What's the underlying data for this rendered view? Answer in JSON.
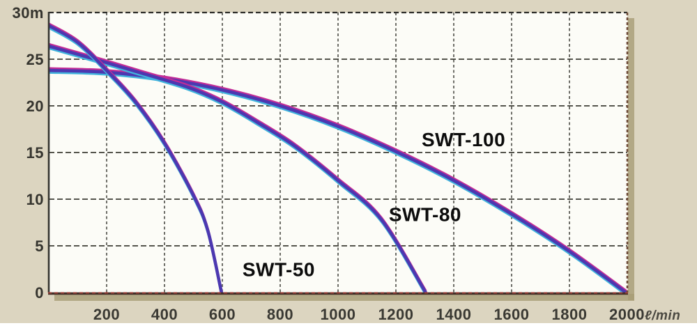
{
  "page": {
    "background_color": "#dcd5c0",
    "plot_background_color": "#fcfcf7",
    "shadow_color": "#a89c75"
  },
  "chart_data": {
    "type": "line",
    "title": "",
    "xlabel": "ℓ/min",
    "ylabel": "m",
    "x_axis": {
      "range": [
        0,
        2000
      ],
      "ticks": [
        200,
        400,
        600,
        800,
        1000,
        1200,
        1400,
        1600,
        1800,
        2000
      ],
      "unit_suffix": "ℓ/min",
      "gridlines": true
    },
    "y_axis": {
      "range": [
        0,
        30
      ],
      "ticks": [
        {
          "value": 30,
          "label": "30m"
        },
        {
          "value": 25,
          "label": "25"
        },
        {
          "value": 20,
          "label": "20"
        },
        {
          "value": 15,
          "label": "15"
        },
        {
          "value": 10,
          "label": "10"
        },
        {
          "value": 5,
          "label": "5"
        },
        {
          "value": 0,
          "label": "0"
        }
      ],
      "gridlines": true
    },
    "legend_position": "inline-annotations",
    "series": [
      {
        "name": "SWT-100",
        "points": [
          [
            0,
            23.8
          ],
          [
            200,
            23.6
          ],
          [
            400,
            22.9
          ],
          [
            600,
            21.7
          ],
          [
            800,
            20.0
          ],
          [
            1000,
            17.8
          ],
          [
            1200,
            15.1
          ],
          [
            1400,
            12.0
          ],
          [
            1600,
            8.4
          ],
          [
            1800,
            4.4
          ],
          [
            1995,
            0
          ]
        ],
        "shutoff_head_m": 23.8,
        "max_flow_l_min": 2000,
        "label": {
          "text": "SWT-100",
          "x": 1434,
          "y": 16.4
        }
      },
      {
        "name": "SWT-80",
        "points": [
          [
            0,
            26.4
          ],
          [
            170,
            24.9
          ],
          [
            300,
            23.7
          ],
          [
            480,
            22.0
          ],
          [
            600,
            20.4
          ],
          [
            723,
            18.2
          ],
          [
            850,
            15.7
          ],
          [
            1000,
            12.0
          ],
          [
            1150,
            7.8
          ],
          [
            1303,
            0
          ]
        ],
        "shutoff_head_m": 26.4,
        "max_flow_l_min": 1300,
        "label": {
          "text": "SWT-80",
          "x": 1301,
          "y": 8.4
        }
      },
      {
        "name": "SWT-50",
        "points": [
          [
            0,
            28.6
          ],
          [
            100,
            26.8
          ],
          [
            200,
            23.8
          ],
          [
            300,
            20.4
          ],
          [
            400,
            16.0
          ],
          [
            500,
            10.4
          ],
          [
            550,
            6.6
          ],
          [
            597,
            0
          ]
        ],
        "shutoff_head_m": 28.6,
        "max_flow_l_min": 600,
        "label": {
          "text": "SWT-50",
          "x": 795,
          "y": 2.5
        }
      }
    ],
    "style": {
      "curve_core_color": "#4c38b0",
      "curve_top_edge_color": "#c32d97",
      "curve_bottom_edge_color": "#41b3dc",
      "grid_vertical_color": "#4b4b44",
      "grid_horizontal_color": "#3c3c35",
      "border_top_color": "#2f2f2b",
      "border_left_color": "#34342f",
      "border_right_color": "#6e4b38",
      "axis_bottom_dark_color": "#463029",
      "axis_bottom_dash_color": "#9c4038"
    }
  }
}
